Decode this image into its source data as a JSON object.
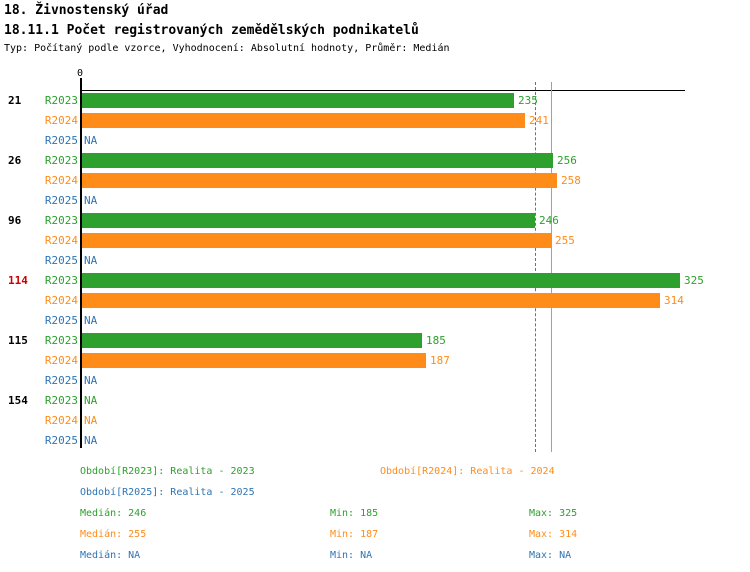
{
  "header": {
    "title": "18. Živnostenský úřad",
    "subtitle": "18.11.1 Počet registrovaných zemědělských podnikatelů",
    "meta": "Typ: Počítaný podle vzorce, Vyhodnocení: Absolutní hodnoty, Průměr: Medián"
  },
  "colors": {
    "green": "#2DA02D",
    "orange": "#FF8C19",
    "blue": "#2E74B5",
    "red": "#CC0000",
    "axis": "#000000"
  },
  "chart_data": {
    "type": "bar",
    "orientation": "horizontal",
    "title": "18.11.1 Počet registrovaných zemědělských podnikatelů",
    "axis": {
      "zero_label": "0",
      "xmin": 0,
      "xmax": 330,
      "gridlines": false
    },
    "na_text": "NA",
    "series": [
      {
        "name": "R2023",
        "color_key": "green"
      },
      {
        "name": "R2024",
        "color_key": "orange"
      },
      {
        "name": "R2025",
        "color_key": "blue"
      }
    ],
    "groups": [
      {
        "label": "21",
        "highlight": false,
        "values": [
          235,
          241,
          null
        ]
      },
      {
        "label": "26",
        "highlight": false,
        "values": [
          256,
          258,
          null
        ]
      },
      {
        "label": "96",
        "highlight": false,
        "values": [
          246,
          255,
          null
        ]
      },
      {
        "label": "114",
        "highlight": true,
        "values": [
          325,
          314,
          null
        ]
      },
      {
        "label": "115",
        "highlight": false,
        "values": [
          185,
          187,
          null
        ]
      },
      {
        "label": "154",
        "highlight": false,
        "values": [
          null,
          null,
          null
        ]
      }
    ],
    "reference_lines": [
      {
        "label": "Medián R2023",
        "value": 246,
        "color_key": "green",
        "style": "dashed"
      },
      {
        "label": "Medián R2024",
        "value": 255,
        "color_key": "orange",
        "style": "solid"
      }
    ]
  },
  "legend": {
    "period_2023": "Období[R2023]: Realita - 2023",
    "period_2024": "Období[R2024]: Realita - 2024",
    "period_2025": "Období[R2025]: Realita - 2025"
  },
  "stats": {
    "rows": [
      {
        "series": "R2023",
        "median": "Medián: 246",
        "min": "Min: 185",
        "max": "Max: 325"
      },
      {
        "series": "R2024",
        "median": "Medián: 255",
        "min": "Min: 187",
        "max": "Max: 314"
      },
      {
        "series": "R2025",
        "median": "Medián: NA",
        "min": "Min: NA",
        "max": "Max: NA"
      }
    ]
  }
}
